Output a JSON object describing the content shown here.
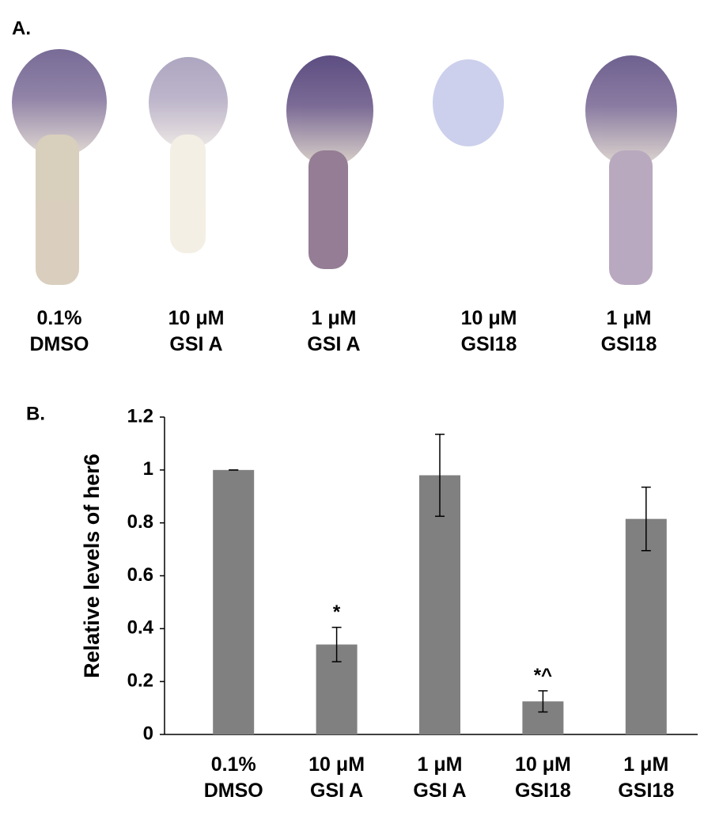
{
  "panel_a": {
    "label": "A.",
    "captions": [
      "0.1%\nDMSO",
      "10 μM\nGSI A",
      "1 μM\nGSI A",
      "10 μM\nGSI18",
      "1 μM\nGSI18"
    ]
  },
  "chart_data": {
    "type": "bar",
    "panel_label": "B.",
    "ylabel": "Relative levels of her6",
    "categories": [
      "0.1%\nDMSO",
      "10 μM\nGSI A",
      "1 μM\nGSI A",
      "10 μM\nGSI18",
      "1 μM\nGSI18"
    ],
    "values": [
      1.0,
      0.34,
      0.98,
      0.125,
      0.815
    ],
    "errors": [
      0,
      0.065,
      0.155,
      0.04,
      0.12
    ],
    "annotations": [
      null,
      "*",
      null,
      "*^",
      null
    ],
    "color": "#808080",
    "ylim": [
      0,
      1.2
    ],
    "yticks": [
      0,
      0.2,
      0.4,
      0.6,
      0.8,
      1,
      1.2
    ],
    "grid": false
  }
}
